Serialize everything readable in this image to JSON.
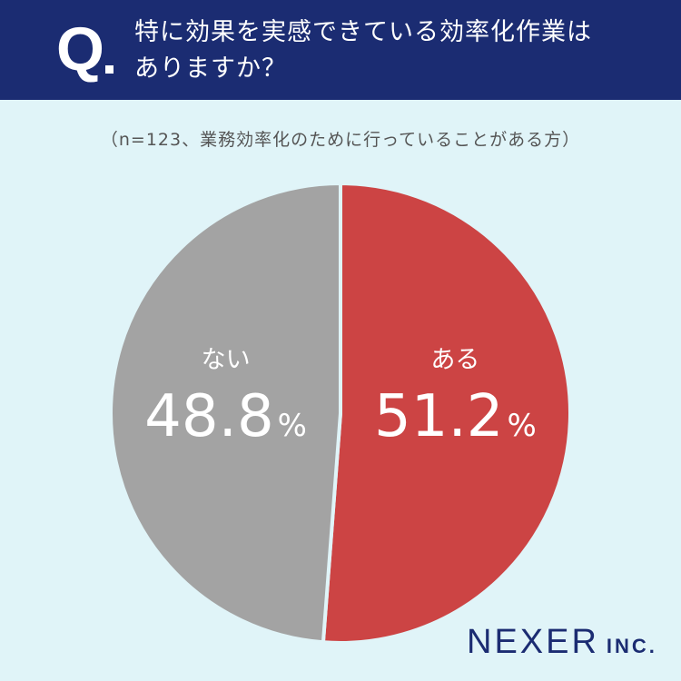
{
  "header": {
    "mark": "Q",
    "question_line1": "特に効果を実感できている効率化作業は",
    "question_line2": "ありますか？"
  },
  "note": "（n=123、業務効率化のために行っていることがある方）",
  "chart_data": {
    "type": "pie",
    "title": "特に効果を実感できている効率化作業はありますか？",
    "n": 123,
    "slices": [
      {
        "label": "ある",
        "value": 51.2,
        "value_text": "51.2",
        "color": "#cc4444"
      },
      {
        "label": "ない",
        "value": 48.8,
        "value_text": "48.8",
        "color": "#a3a3a3"
      }
    ],
    "unit": "%",
    "start": "12 o'clock",
    "direction": "clockwise"
  },
  "brand": {
    "name": "NEXER",
    "suffix": "INC.",
    "color": "#1b2c72"
  },
  "colors": {
    "background": "#e0f4f8",
    "header": "#1b2c72"
  }
}
